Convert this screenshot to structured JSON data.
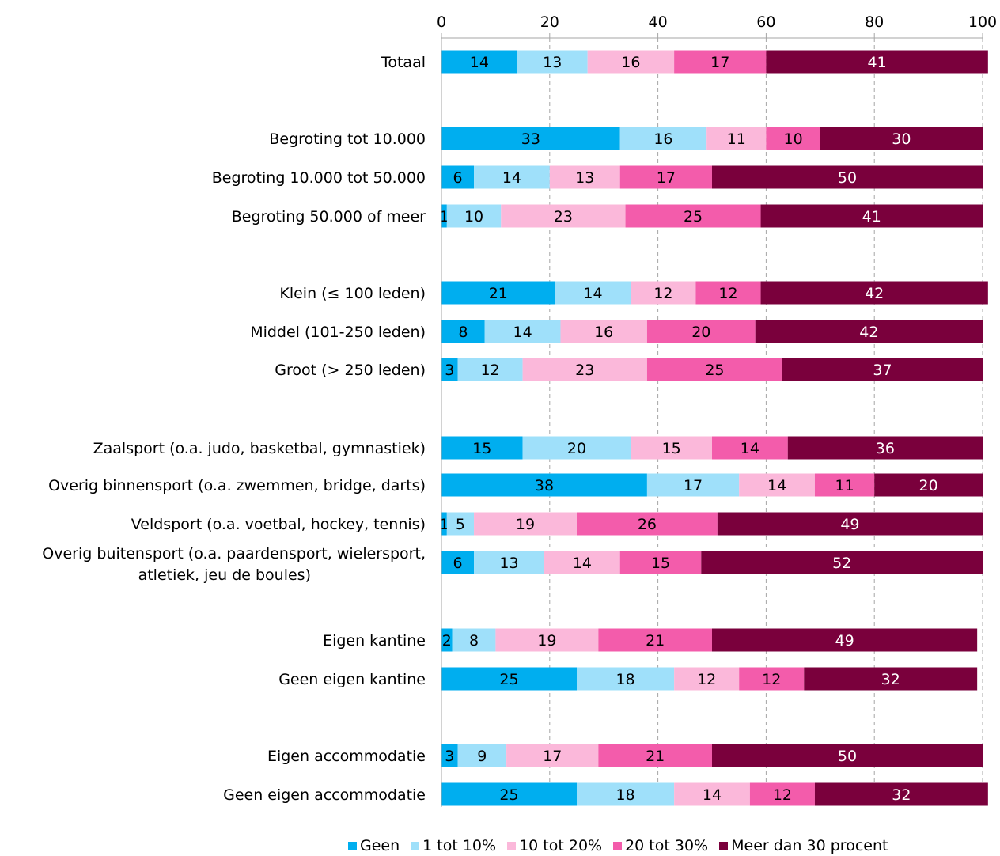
{
  "chart_data": {
    "type": "bar",
    "orientation": "horizontal",
    "stacked": true,
    "xlim": [
      0,
      100
    ],
    "xticks": [
      0,
      20,
      40,
      60,
      80,
      100
    ],
    "grid": true,
    "legend_position": "bottom",
    "categories": [
      "Totaal",
      "Begroting tot 10.000",
      "Begroting 10.000 tot 50.000",
      "Begroting 50.000 of meer",
      "Klein (≤ 100 leden)",
      "Middel (101-250 leden)",
      "Groot (> 250 leden)",
      "Zaalsport (o.a. judo, basketbal, gymnastiek)",
      "Overig binnensport (o.a. zwemmen, bridge, darts)",
      "Veldsport (o.a. voetbal, hockey, tennis)",
      "Overig buitensport (o.a. paardensport, wielersport, atletiek, jeu de boules)",
      "Eigen kantine",
      "Geen eigen kantine",
      "Eigen accommodatie",
      "Geen eigen accommodatie"
    ],
    "series": [
      {
        "name": "Geen",
        "color": "#00AEEF",
        "values": [
          14,
          33,
          6,
          1,
          21,
          8,
          3,
          15,
          38,
          1,
          6,
          2,
          25,
          3,
          25
        ]
      },
      {
        "name": "1 tot 10%",
        "color": "#9FE0FA",
        "values": [
          13,
          16,
          14,
          10,
          14,
          14,
          12,
          20,
          17,
          5,
          13,
          8,
          18,
          9,
          18
        ]
      },
      {
        "name": "10 tot 20%",
        "color": "#FBB8DA",
        "values": [
          16,
          11,
          13,
          23,
          12,
          16,
          23,
          15,
          14,
          19,
          14,
          19,
          12,
          17,
          14
        ]
      },
      {
        "name": "20 tot 30%",
        "color": "#F35CAB",
        "values": [
          17,
          10,
          17,
          25,
          12,
          20,
          25,
          14,
          11,
          26,
          15,
          21,
          12,
          21,
          12
        ]
      },
      {
        "name": "Meer dan 30 procent",
        "color": "#7A003C",
        "values": [
          41,
          30,
          50,
          41,
          42,
          42,
          37,
          36,
          20,
          49,
          52,
          49,
          32,
          50,
          32
        ]
      }
    ]
  }
}
